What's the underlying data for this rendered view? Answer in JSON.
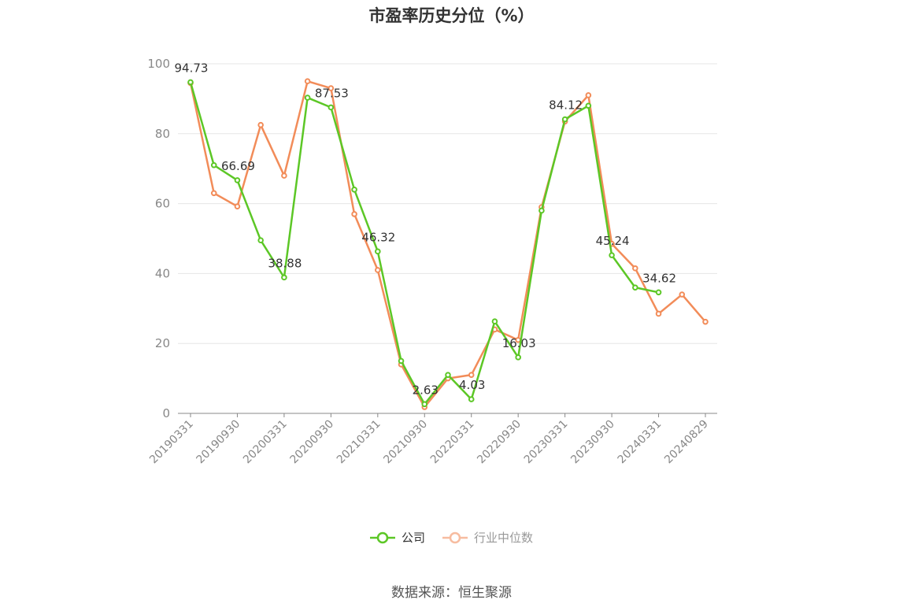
{
  "title": "市盈率历史分位（%）",
  "source": "数据来源：恒生聚源",
  "colors": {
    "company": "#5cc726",
    "industry": "#f28c59",
    "axis": "#888888",
    "grid": "#e6e6e6",
    "label": "#333333"
  },
  "chart_data": {
    "type": "line",
    "title": "市盈率历史分位（%）",
    "ylim": [
      0,
      100
    ],
    "yticks": [
      0,
      20,
      40,
      60,
      80,
      100
    ],
    "grid": true,
    "legend_position": "bottom",
    "x": [
      "20190331",
      "20190630",
      "20190930",
      "20191231",
      "20200331",
      "20200630",
      "20200930",
      "20201231",
      "20210331",
      "20210630",
      "20210930",
      "20211231",
      "20220331",
      "20220630",
      "20220930",
      "20221231",
      "20230331",
      "20230630",
      "20230930",
      "20231231",
      "20240331",
      "20240630",
      "20240829"
    ],
    "xtick_labels": [
      "20190331",
      "20190930",
      "20200331",
      "20200930",
      "20210331",
      "20210930",
      "20220331",
      "20220930",
      "20230331",
      "20230930",
      "20240331",
      "20240829"
    ],
    "series": [
      {
        "name": "公司",
        "color": "#5cc726",
        "values": [
          94.73,
          71.0,
          66.69,
          49.5,
          38.88,
          90.3,
          87.53,
          64.0,
          46.32,
          15.0,
          2.63,
          11.0,
          4.03,
          26.3,
          16.03,
          58.0,
          84.12,
          88.0,
          45.24,
          36.0,
          34.62,
          null,
          null
        ],
        "labels": {
          "0": "94.73",
          "2": "66.69",
          "4": "38.88",
          "6": "87.53",
          "8": "46.32",
          "10": "2.63",
          "12": "4.03",
          "14": "16.03",
          "16": "84.12",
          "18": "45.24",
          "20": "34.62"
        }
      },
      {
        "name": "行业中位数",
        "color": "#f28c59",
        "values": [
          94.5,
          63.0,
          59.2,
          82.5,
          68.0,
          95.0,
          93.0,
          57.0,
          41.0,
          14.0,
          1.8,
          10.0,
          11.0,
          24.0,
          21.0,
          59.0,
          83.5,
          91.0,
          48.5,
          41.5,
          28.5,
          34.0,
          26.2
        ]
      }
    ]
  }
}
